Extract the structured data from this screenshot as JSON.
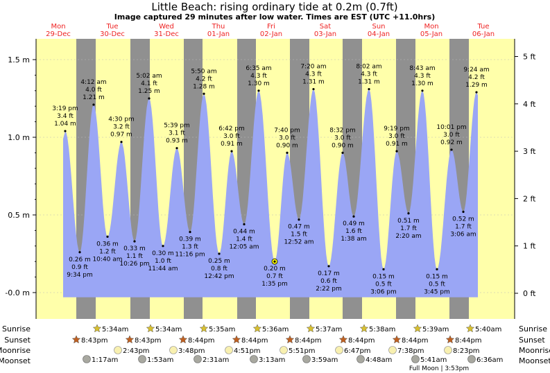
{
  "chart_data": {
    "type": "area",
    "title": "Little Beach: rising  ordinary tide at 0.2m (0.7ft)",
    "subtitle": "Image captured 29 minutes after low water. Times are EST (UTC +11.0hrs)",
    "ylim_m": [
      -0.05,
      1.62
    ],
    "y_ticks_m": [
      "-0.0 m",
      "0.5 m",
      "1.0 m",
      "1.5 m"
    ],
    "y_ticks_m_values": [
      0.0,
      0.5,
      1.0,
      1.5
    ],
    "y_ticks_ft": [
      "0 ft",
      "1 ft",
      "2 ft",
      "3 ft",
      "4 ft",
      "5 ft"
    ],
    "y_ticks_ft_values": [
      0,
      1,
      2,
      3,
      4,
      5
    ],
    "days": [
      {
        "name": "Mon",
        "date": "29-Dec"
      },
      {
        "name": "Tue",
        "date": "30-Dec"
      },
      {
        "name": "Wed",
        "date": "31-Dec"
      },
      {
        "name": "Thu",
        "date": "01-Jan"
      },
      {
        "name": "Fri",
        "date": "02-Jan"
      },
      {
        "name": "Sat",
        "date": "03-Jan"
      },
      {
        "name": "Sun",
        "date": "04-Jan"
      },
      {
        "name": "Mon",
        "date": "05-Jan"
      },
      {
        "name": "Tue",
        "date": "06-Jan"
      }
    ],
    "tides": [
      {
        "time": "3:19 pm",
        "ft": "3.4 ft",
        "m": "1.04 m",
        "value": 1.04,
        "type": "high"
      },
      {
        "time": "9:34 pm",
        "ft": "0.9 ft",
        "m": "0.26 m",
        "value": 0.26,
        "type": "low"
      },
      {
        "time": "4:12 am",
        "ft": "4.0 ft",
        "m": "1.21 m",
        "value": 1.21,
        "type": "high"
      },
      {
        "time": "10:40 am",
        "ft": "1.2 ft",
        "m": "0.36 m",
        "value": 0.36,
        "type": "low"
      },
      {
        "time": "4:30 pm",
        "ft": "3.2 ft",
        "m": "0.97 m",
        "value": 0.97,
        "type": "high"
      },
      {
        "time": "10:26 pm",
        "ft": "1.1 ft",
        "m": "0.33 m",
        "value": 0.33,
        "type": "low"
      },
      {
        "time": "5:02 am",
        "ft": "4.1 ft",
        "m": "1.25 m",
        "value": 1.25,
        "type": "high"
      },
      {
        "time": "11:44 am",
        "ft": "1.0 ft",
        "m": "0.30 m",
        "value": 0.3,
        "type": "low"
      },
      {
        "time": "5:39 pm",
        "ft": "3.1 ft",
        "m": "0.93 m",
        "value": 0.93,
        "type": "high"
      },
      {
        "time": "11:16 pm",
        "ft": "1.3 ft",
        "m": "0.39 m",
        "value": 0.39,
        "type": "low"
      },
      {
        "time": "5:50 am",
        "ft": "4.2 ft",
        "m": "1.28 m",
        "value": 1.28,
        "type": "high"
      },
      {
        "time": "12:42 pm",
        "ft": "0.8 ft",
        "m": "0.25 m",
        "value": 0.25,
        "type": "low"
      },
      {
        "time": "6:42 pm",
        "ft": "3.0 ft",
        "m": "0.91 m",
        "value": 0.91,
        "type": "high"
      },
      {
        "time": "12:05 am",
        "ft": "1.4 ft",
        "m": "0.44 m",
        "value": 0.44,
        "type": "low"
      },
      {
        "time": "6:35 am",
        "ft": "4.3 ft",
        "m": "1.30 m",
        "value": 1.3,
        "type": "high"
      },
      {
        "time": "1:35 pm",
        "ft": "0.7 ft",
        "m": "0.20 m",
        "value": 0.2,
        "type": "low"
      },
      {
        "time": "7:40 pm",
        "ft": "3.0 ft",
        "m": "0.90 m",
        "value": 0.9,
        "type": "high"
      },
      {
        "time": "12:52 am",
        "ft": "1.5 ft",
        "m": "0.47 m",
        "value": 0.47,
        "type": "low"
      },
      {
        "time": "7:20 am",
        "ft": "4.3 ft",
        "m": "1.31 m",
        "value": 1.31,
        "type": "high"
      },
      {
        "time": "2:22 pm",
        "ft": "0.6 ft",
        "m": "0.17 m",
        "value": 0.17,
        "type": "low"
      },
      {
        "time": "8:32 pm",
        "ft": "3.0 ft",
        "m": "0.90 m",
        "value": 0.9,
        "type": "high"
      },
      {
        "time": "1:38 am",
        "ft": "1.6 ft",
        "m": "0.49 m",
        "value": 0.49,
        "type": "low"
      },
      {
        "time": "8:02 am",
        "ft": "4.3 ft",
        "m": "1.31 m",
        "value": 1.31,
        "type": "high"
      },
      {
        "time": "3:06 pm",
        "ft": "0.5 ft",
        "m": "0.15 m",
        "value": 0.15,
        "type": "low"
      },
      {
        "time": "9:19 pm",
        "ft": "3.0 ft",
        "m": "0.91 m",
        "value": 0.91,
        "type": "high"
      },
      {
        "time": "2:20 am",
        "ft": "1.7 ft",
        "m": "0.51 m",
        "value": 0.51,
        "type": "low"
      },
      {
        "time": "8:43 am",
        "ft": "4.3 ft",
        "m": "1.30 m",
        "value": 1.3,
        "type": "high"
      },
      {
        "time": "3:45 pm",
        "ft": "0.5 ft",
        "m": "0.15 m",
        "value": 0.15,
        "type": "low"
      },
      {
        "time": "10:01 pm",
        "ft": "3.0 ft",
        "m": "0.92 m",
        "value": 0.92,
        "type": "high"
      },
      {
        "time": "3:06 am",
        "ft": "1.7 ft",
        "m": "0.52 m",
        "value": 0.52,
        "type": "low"
      },
      {
        "time": "9:24 am",
        "ft": "4.2 ft",
        "m": "1.29 m",
        "value": 1.29,
        "type": "high"
      }
    ],
    "sunrise": [
      "5:34am",
      "5:34am",
      "5:35am",
      "5:36am",
      "5:37am",
      "5:38am",
      "5:39am",
      "5:40am"
    ],
    "sunset": [
      "8:43pm",
      "8:43pm",
      "8:44pm",
      "8:44pm",
      "8:44pm",
      "8:44pm",
      "8:44pm",
      "8:44pm"
    ],
    "moonrise": [
      "2:43pm",
      "3:48pm",
      "4:51pm",
      "5:51pm",
      "6:47pm",
      "7:38pm",
      "8:23pm"
    ],
    "moonset": [
      "1:17am",
      "1:53am",
      "2:31am",
      "3:13am",
      "3:59am",
      "4:48am",
      "5:41am",
      "6:36am"
    ],
    "row_labels": {
      "sunrise": "Sunrise",
      "sunset": "Sunset",
      "moonrise": "Moonrise",
      "moonset": "Moonset"
    },
    "moon_phase_note": "Full Moon | 3:53pm",
    "colors": {
      "day": "#ffffaa",
      "night": "#909090",
      "water": "#9aa6f5",
      "day_label": "#ee2222",
      "sun": "#d8c030",
      "sunset": "#c06020",
      "moonrise": "#f8f0b0",
      "moonset": "#a8a8a0"
    }
  }
}
